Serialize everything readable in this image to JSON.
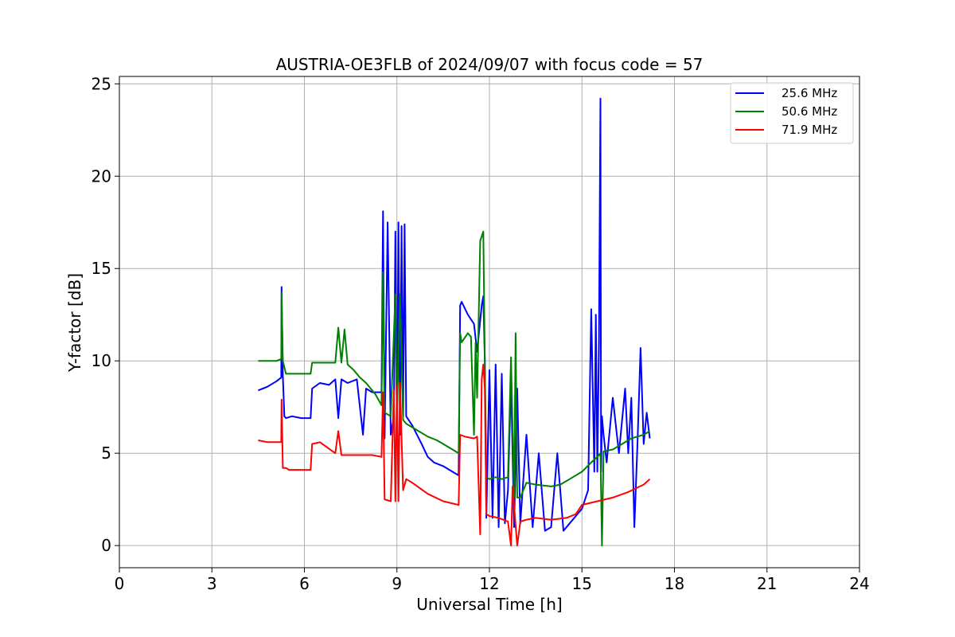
{
  "chart_data": {
    "type": "line",
    "title": "AUSTRIA-OE3FLB of 2024/09/07 with focus code = 57",
    "xlabel": "Universal Time [h]",
    "ylabel": "Y-factor [dB]",
    "xlim": [
      0,
      24
    ],
    "ylim": [
      -1.2,
      25.4
    ],
    "xticks": [
      0,
      3,
      6,
      9,
      12,
      15,
      18,
      21,
      24
    ],
    "yticks": [
      0,
      5,
      10,
      15,
      20,
      25
    ],
    "grid": true,
    "legend_position": "top-right",
    "series": [
      {
        "name": "25.6 MHz",
        "color": "#0000ff",
        "x": [
          4.5,
          4.8,
          5.1,
          5.25,
          5.26,
          5.3,
          5.35,
          5.4,
          5.6,
          5.9,
          6.2,
          6.25,
          6.5,
          6.8,
          7.0,
          7.1,
          7.2,
          7.4,
          7.7,
          7.9,
          8.0,
          8.2,
          8.5,
          8.55,
          8.6,
          8.7,
          8.8,
          8.9,
          8.95,
          9.0,
          9.05,
          9.1,
          9.15,
          9.2,
          9.25,
          9.3,
          9.5,
          9.8,
          10.0,
          10.2,
          10.5,
          10.8,
          11.0,
          11.05,
          11.1,
          11.3,
          11.5,
          11.6,
          11.75,
          11.8,
          11.85,
          11.9,
          12.0,
          12.1,
          12.2,
          12.3,
          12.4,
          12.5,
          12.6,
          12.7,
          12.8,
          12.9,
          13.0,
          13.2,
          13.4,
          13.6,
          13.8,
          14.0,
          14.2,
          14.4,
          14.6,
          14.8,
          15.0,
          15.2,
          15.3,
          15.4,
          15.45,
          15.5,
          15.55,
          15.6,
          15.62,
          15.65,
          15.7,
          15.8,
          16.0,
          16.2,
          16.4,
          16.5,
          16.6,
          16.7,
          16.8,
          16.9,
          17.0,
          17.1,
          17.2
        ],
        "y": [
          8.4,
          8.6,
          8.9,
          9.1,
          14.0,
          9.2,
          7.0,
          6.9,
          7.0,
          6.9,
          6.9,
          8.5,
          8.8,
          8.7,
          9.0,
          6.9,
          9.0,
          8.8,
          9.0,
          6.0,
          8.5,
          8.3,
          8.3,
          18.1,
          5.8,
          17.5,
          6.0,
          7.0,
          17.0,
          6.0,
          17.5,
          6.0,
          17.3,
          7.0,
          17.4,
          7.0,
          6.5,
          5.5,
          4.8,
          4.5,
          4.3,
          4.0,
          3.8,
          13.0,
          13.2,
          12.5,
          12.0,
          10.5,
          13.0,
          13.5,
          10.0,
          1.5,
          9.5,
          1.5,
          9.8,
          1.0,
          9.3,
          1.2,
          3.0,
          9.0,
          1.0,
          8.5,
          1.2,
          6.0,
          1.0,
          5.0,
          0.8,
          1.0,
          5.0,
          0.8,
          1.2,
          1.6,
          2.0,
          3.0,
          12.8,
          4.0,
          12.5,
          4.0,
          11.0,
          24.2,
          4.0,
          7.0,
          6.0,
          4.5,
          8.0,
          5.0,
          8.5,
          5.0,
          8.0,
          1.0,
          5.5,
          10.7,
          5.5,
          7.2,
          5.8
        ]
      },
      {
        "name": "50.6 MHz",
        "color": "#008000",
        "x": [
          4.5,
          4.8,
          5.1,
          5.25,
          5.26,
          5.3,
          5.4,
          5.5,
          5.8,
          6.2,
          6.25,
          6.5,
          6.8,
          7.0,
          7.1,
          7.2,
          7.3,
          7.4,
          7.6,
          7.8,
          8.0,
          8.3,
          8.5,
          8.55,
          8.6,
          8.8,
          8.95,
          9.0,
          9.1,
          9.2,
          9.3,
          9.6,
          10.0,
          10.3,
          10.6,
          10.9,
          11.0,
          11.05,
          11.1,
          11.3,
          11.4,
          11.5,
          11.55,
          11.6,
          11.7,
          11.8,
          11.85,
          11.9,
          12.0,
          12.2,
          12.4,
          12.6,
          12.7,
          12.8,
          12.85,
          12.9,
          13.0,
          13.2,
          13.5,
          14.0,
          14.3,
          14.6,
          15.0,
          15.3,
          15.5,
          15.6,
          15.65,
          15.7,
          16.0,
          16.3,
          16.6,
          17.0,
          17.2
        ],
        "y": [
          10.0,
          10.0,
          10.0,
          10.1,
          13.7,
          10.0,
          9.3,
          9.3,
          9.3,
          9.3,
          9.9,
          9.9,
          9.9,
          9.9,
          11.8,
          9.9,
          11.7,
          9.8,
          9.5,
          9.1,
          8.8,
          8.2,
          7.6,
          14.8,
          7.2,
          7.0,
          13.6,
          7.0,
          13.6,
          6.8,
          6.6,
          6.3,
          5.9,
          5.7,
          5.4,
          5.1,
          5.0,
          11.5,
          11.0,
          11.5,
          11.3,
          6.0,
          11.0,
          8.0,
          16.5,
          17.0,
          10.0,
          3.7,
          3.6,
          3.7,
          3.6,
          3.7,
          10.2,
          2.6,
          11.5,
          2.6,
          2.6,
          3.4,
          3.3,
          3.2,
          3.3,
          3.6,
          4.0,
          4.5,
          4.8,
          5.0,
          0.0,
          5.1,
          5.2,
          5.5,
          5.8,
          6.0,
          6.2
        ]
      },
      {
        "name": "71.9 MHz",
        "color": "#ff0000",
        "x": [
          4.5,
          4.8,
          5.1,
          5.25,
          5.26,
          5.3,
          5.4,
          5.5,
          6.0,
          6.2,
          6.25,
          6.5,
          7.0,
          7.1,
          7.2,
          7.4,
          7.8,
          8.2,
          8.5,
          8.55,
          8.6,
          8.8,
          8.9,
          8.95,
          9.0,
          9.05,
          9.1,
          9.2,
          9.3,
          9.5,
          10.0,
          10.5,
          11.0,
          11.05,
          11.2,
          11.5,
          11.6,
          11.7,
          11.75,
          11.8,
          11.85,
          11.9,
          12.0,
          12.3,
          12.6,
          12.7,
          12.75,
          12.9,
          13.0,
          13.2,
          13.5,
          14.0,
          14.5,
          14.8,
          15.0,
          15.5,
          16.0,
          16.5,
          17.0,
          17.2
        ],
        "y": [
          5.7,
          5.6,
          5.6,
          5.6,
          7.9,
          4.2,
          4.2,
          4.1,
          4.1,
          4.1,
          5.5,
          5.6,
          5.0,
          6.2,
          4.9,
          4.9,
          4.9,
          4.9,
          4.8,
          8.3,
          2.5,
          2.4,
          8.4,
          2.4,
          8.7,
          2.4,
          8.8,
          3.0,
          3.6,
          3.4,
          2.8,
          2.4,
          2.2,
          6.0,
          5.9,
          5.8,
          5.9,
          0.6,
          9.0,
          9.8,
          8.5,
          1.7,
          1.6,
          1.5,
          1.3,
          0.0,
          3.2,
          0.0,
          1.3,
          1.4,
          1.5,
          1.4,
          1.5,
          1.7,
          2.2,
          2.4,
          2.6,
          2.9,
          3.3,
          3.6
        ]
      }
    ]
  }
}
